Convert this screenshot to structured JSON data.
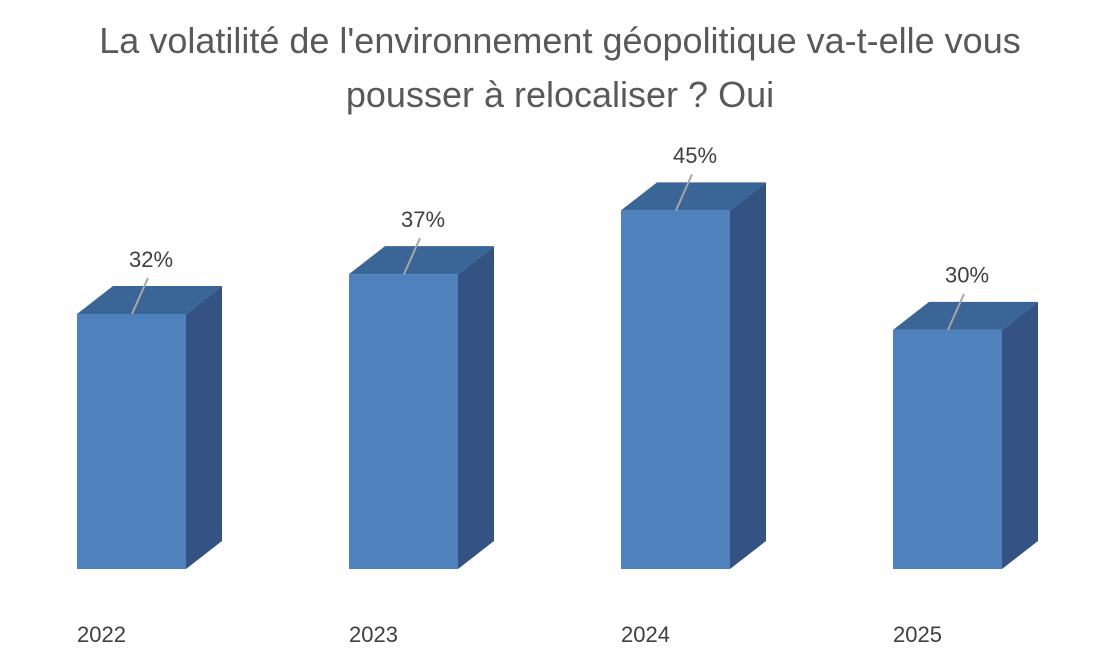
{
  "chart_data": {
    "type": "bar",
    "title_lines": [
      "La volatilité de l'environnement géopolitique va-t-elle vous",
      "pousser à relocaliser ? Oui"
    ],
    "categories": [
      "2022",
      "2023",
      "2024",
      "2025"
    ],
    "values": [
      32,
      37,
      45,
      30
    ],
    "value_labels": [
      "32%",
      "37%",
      "45%",
      "30%"
    ],
    "xlabel": "",
    "ylabel": "",
    "ylim": [
      0,
      45
    ],
    "grid": false,
    "legend": "none",
    "bar_style": "3d-column"
  },
  "colors": {
    "front": "#4f81bd",
    "top": "#3a6597",
    "side": "#345382",
    "leader": "#a6a6a6",
    "text": "#404040",
    "title": "#595959"
  }
}
